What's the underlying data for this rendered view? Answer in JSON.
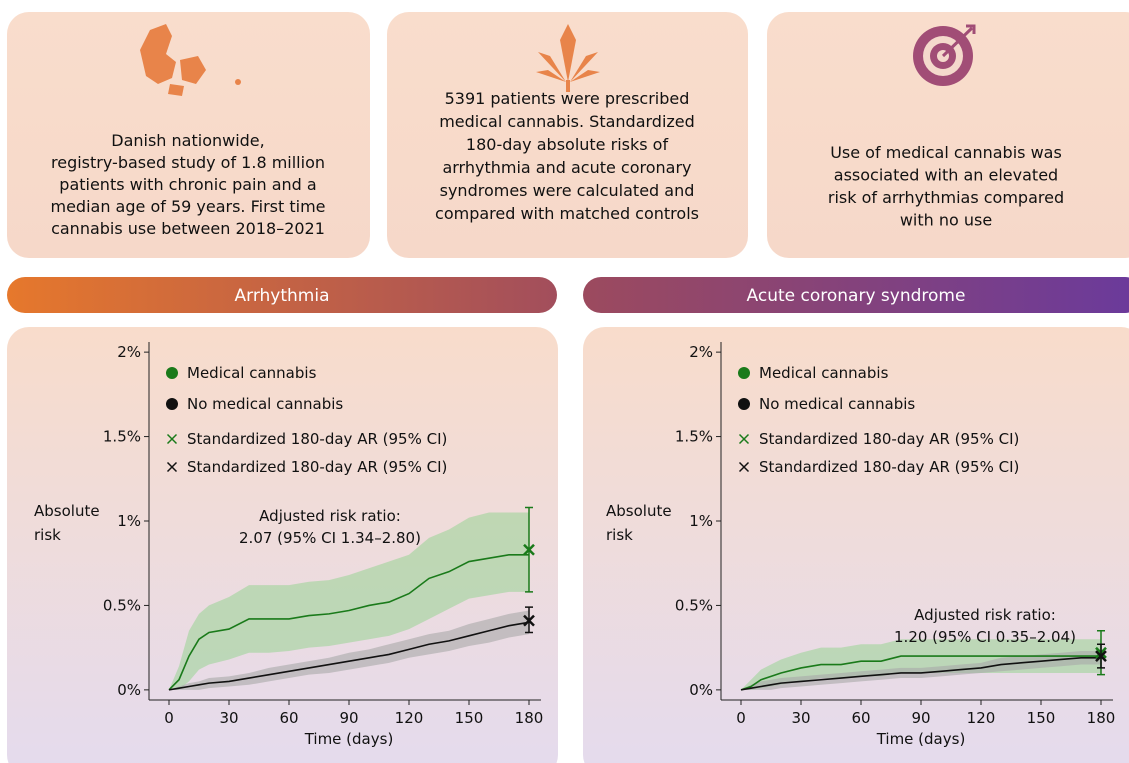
{
  "panels": [
    {
      "lines": [
        "Danish nationwide,",
        "registry-based study of 1.8 million",
        "patients with chronic pain and a",
        "median age of 59 years. First time",
        "cannabis use between 2018–2021"
      ]
    },
    {
      "lines": [
        "5391 patients were prescribed",
        "medical cannabis. Standardized",
        "180-day absolute risks of",
        "arrhythmia and acute coronary",
        "syndromes were calculated and",
        "compared with matched controls"
      ]
    },
    {
      "lines": [
        "Use of medical cannabis was",
        "associated with an elevated",
        "risk of arrhythmias compared",
        "with no use"
      ]
    }
  ],
  "chart_data": [
    {
      "type": "line",
      "title": "Arrhythmia",
      "xlabel": "Time (days)",
      "ylabel": [
        "Absolute",
        "risk"
      ],
      "xlim": [
        -10,
        186
      ],
      "xticks": [
        0,
        30,
        60,
        90,
        120,
        150,
        180
      ],
      "ylim": [
        -0.06,
        2.06
      ],
      "yticks": [
        {
          "value": 0,
          "label": "0%"
        },
        {
          "value": 0.5,
          "label": "0.5%"
        },
        {
          "value": 1,
          "label": "1%"
        },
        {
          "value": 1.5,
          "label": "1.5%"
        },
        {
          "value": 2,
          "label": "2%"
        }
      ],
      "legend": "upper left",
      "x": [
        0,
        5,
        10,
        15,
        20,
        30,
        40,
        50,
        60,
        70,
        80,
        90,
        100,
        110,
        120,
        130,
        140,
        150,
        160,
        170,
        180
      ],
      "series": [
        {
          "name": "Medical cannabis",
          "color": "#1a7a1a",
          "band_color": "#9fd39a",
          "values": [
            0,
            0.06,
            0.2,
            0.3,
            0.34,
            0.36,
            0.42,
            0.42,
            0.42,
            0.44,
            0.45,
            0.47,
            0.5,
            0.52,
            0.57,
            0.66,
            0.7,
            0.76,
            0.78,
            0.8,
            0.8
          ],
          "lower": [
            0,
            0,
            0.05,
            0.12,
            0.15,
            0.18,
            0.22,
            0.22,
            0.23,
            0.25,
            0.26,
            0.28,
            0.3,
            0.32,
            0.36,
            0.42,
            0.48,
            0.54,
            0.56,
            0.58,
            0.58
          ],
          "upper": [
            0,
            0.14,
            0.35,
            0.45,
            0.5,
            0.55,
            0.62,
            0.62,
            0.62,
            0.64,
            0.65,
            0.68,
            0.72,
            0.76,
            0.8,
            0.9,
            0.95,
            1.02,
            1.05,
            1.05,
            1.05
          ]
        },
        {
          "name": "No medical cannabis",
          "color": "#111111",
          "band_color": "#a8a8a8",
          "values": [
            0,
            0.01,
            0.02,
            0.03,
            0.04,
            0.05,
            0.07,
            0.09,
            0.11,
            0.13,
            0.15,
            0.17,
            0.19,
            0.21,
            0.24,
            0.27,
            0.29,
            0.32,
            0.35,
            0.38,
            0.4
          ],
          "lower": [
            0,
            0,
            0,
            0,
            0.01,
            0.02,
            0.03,
            0.05,
            0.07,
            0.09,
            0.1,
            0.12,
            0.14,
            0.16,
            0.19,
            0.21,
            0.23,
            0.26,
            0.28,
            0.31,
            0.33
          ],
          "upper": [
            0,
            0.02,
            0.04,
            0.05,
            0.07,
            0.08,
            0.1,
            0.13,
            0.15,
            0.17,
            0.19,
            0.22,
            0.24,
            0.27,
            0.3,
            0.33,
            0.35,
            0.39,
            0.42,
            0.45,
            0.47
          ]
        }
      ],
      "estimates": [
        {
          "name": "Standardized 180-day AR (95% CI)",
          "color": "#1a7a1a",
          "x": 180,
          "value": 0.83,
          "lower": 0.58,
          "upper": 1.08
        },
        {
          "name": "Standardized 180-day AR (95% CI)",
          "color": "#111111",
          "x": 180,
          "value": 0.41,
          "lower": 0.34,
          "upper": 0.49
        }
      ],
      "annotation": [
        "Adjusted risk ratio:",
        "2.07 (95% CI 1.34–2.80)"
      ]
    },
    {
      "type": "line",
      "title": "Acute coronary syndrome",
      "xlabel": "Time (days)",
      "ylabel": [
        "Absolute",
        "risk"
      ],
      "xlim": [
        -10,
        186
      ],
      "xticks": [
        0,
        30,
        60,
        90,
        120,
        150,
        180
      ],
      "ylim": [
        -0.06,
        2.06
      ],
      "yticks": [
        {
          "value": 0,
          "label": "0%"
        },
        {
          "value": 0.5,
          "label": "0.5%"
        },
        {
          "value": 1,
          "label": "1%"
        },
        {
          "value": 1.5,
          "label": "1.5%"
        },
        {
          "value": 2,
          "label": "2%"
        }
      ],
      "legend": "upper left",
      "x": [
        0,
        5,
        10,
        15,
        20,
        30,
        40,
        50,
        60,
        70,
        80,
        90,
        100,
        110,
        120,
        130,
        140,
        150,
        160,
        170,
        180
      ],
      "series": [
        {
          "name": "Medical cannabis",
          "color": "#1a7a1a",
          "band_color": "#9fd39a",
          "values": [
            0,
            0.02,
            0.06,
            0.08,
            0.1,
            0.13,
            0.15,
            0.15,
            0.17,
            0.17,
            0.2,
            0.2,
            0.2,
            0.2,
            0.2,
            0.2,
            0.2,
            0.2,
            0.2,
            0.2,
            0.2
          ],
          "lower": [
            0,
            0,
            0.01,
            0.02,
            0.03,
            0.05,
            0.07,
            0.07,
            0.08,
            0.08,
            0.1,
            0.1,
            0.1,
            0.1,
            0.1,
            0.1,
            0.1,
            0.1,
            0.1,
            0.1,
            0.1
          ],
          "upper": [
            0,
            0.06,
            0.12,
            0.15,
            0.18,
            0.22,
            0.25,
            0.25,
            0.27,
            0.27,
            0.3,
            0.3,
            0.3,
            0.3,
            0.3,
            0.3,
            0.3,
            0.3,
            0.3,
            0.3,
            0.3
          ]
        },
        {
          "name": "No medical cannabis",
          "color": "#111111",
          "band_color": "#a8a8a8",
          "values": [
            0,
            0.01,
            0.02,
            0.03,
            0.04,
            0.05,
            0.06,
            0.07,
            0.08,
            0.09,
            0.1,
            0.1,
            0.11,
            0.12,
            0.13,
            0.15,
            0.16,
            0.17,
            0.18,
            0.19,
            0.19
          ],
          "lower": [
            0,
            0,
            0,
            0,
            0.01,
            0.02,
            0.03,
            0.04,
            0.05,
            0.06,
            0.07,
            0.07,
            0.08,
            0.09,
            0.1,
            0.11,
            0.12,
            0.13,
            0.14,
            0.15,
            0.15
          ],
          "upper": [
            0,
            0.03,
            0.05,
            0.06,
            0.07,
            0.08,
            0.09,
            0.1,
            0.11,
            0.12,
            0.13,
            0.13,
            0.14,
            0.15,
            0.16,
            0.19,
            0.2,
            0.21,
            0.22,
            0.23,
            0.23
          ]
        }
      ],
      "estimates": [
        {
          "name": "Standardized 180-day AR (95% CI)",
          "color": "#1a7a1a",
          "x": 180,
          "value": 0.22,
          "lower": 0.09,
          "upper": 0.35
        },
        {
          "name": "Standardized 180-day AR (95% CI)",
          "color": "#111111",
          "x": 180,
          "value": 0.2,
          "lower": 0.13,
          "upper": 0.27
        }
      ],
      "annotation": [
        "Adjusted risk ratio:",
        "1.20 (95% CI 0.35–2.04)"
      ]
    }
  ]
}
